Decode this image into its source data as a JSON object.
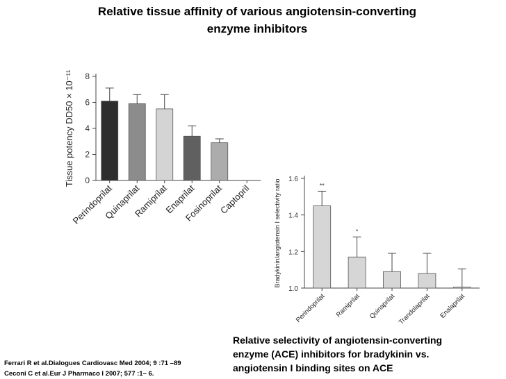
{
  "slide": {
    "title_lines": [
      "Relative tissue affinity of various angiotensin-converting",
      "enzyme inhibitors"
    ],
    "caption_lines": [
      "Relative selectivity of angiotensin-converting",
      "enzyme (ACE) inhibitors for bradykinin vs.",
      "angiotensin I binding sites on ACE"
    ],
    "references": [
      "Ferrari R et al.Dialogues Cardiovasc Med 2004; 9 :71 –89",
      "Ceconi C et al.Eur J Pharmaco l 2007; 577 :1– 6."
    ]
  },
  "chart_data": [
    {
      "type": "bar",
      "title": "",
      "xlabel": "",
      "ylabel": "Tissue potency DD50 × 10⁻¹¹",
      "categories": [
        "Perindoprilat",
        "Quinaprilat",
        "Ramiprilat",
        "Enaprilat",
        "Fosinoprilat",
        "Captopril"
      ],
      "values": [
        6.1,
        5.9,
        5.5,
        3.4,
        2.9,
        null
      ],
      "errors": [
        1.0,
        0.7,
        1.1,
        0.8,
        0.3,
        null
      ],
      "colors": [
        "#2e2e2e",
        "#8c8c8c",
        "#d4d4d4",
        "#606060",
        "#acacac",
        "#cccccc"
      ],
      "ylim": [
        0,
        8
      ],
      "yticks": [
        0,
        2,
        4,
        6,
        8
      ],
      "grid": false
    },
    {
      "type": "bar",
      "title": "",
      "xlabel": "",
      "ylabel": "Bradykinin/angiotensin I selectivity ratio",
      "categories": [
        "Perindoprilat",
        "Ramiprilat",
        "Quinaprilat",
        "Trandolaprilat",
        "Enalaprilat"
      ],
      "values": [
        1.45,
        1.17,
        1.09,
        1.08,
        1.005
      ],
      "errors": [
        0.08,
        0.11,
        0.1,
        0.11,
        0.1
      ],
      "significance": [
        "**",
        "*",
        "",
        "",
        ""
      ],
      "colors": [
        "#d6d6d6",
        "#d6d6d6",
        "#d6d6d6",
        "#d6d6d6",
        "#d6d6d6"
      ],
      "ylim": [
        1.0,
        1.6
      ],
      "yticks": [
        "1.0",
        "1.2",
        "1.4",
        "1.6"
      ],
      "grid": false
    }
  ]
}
